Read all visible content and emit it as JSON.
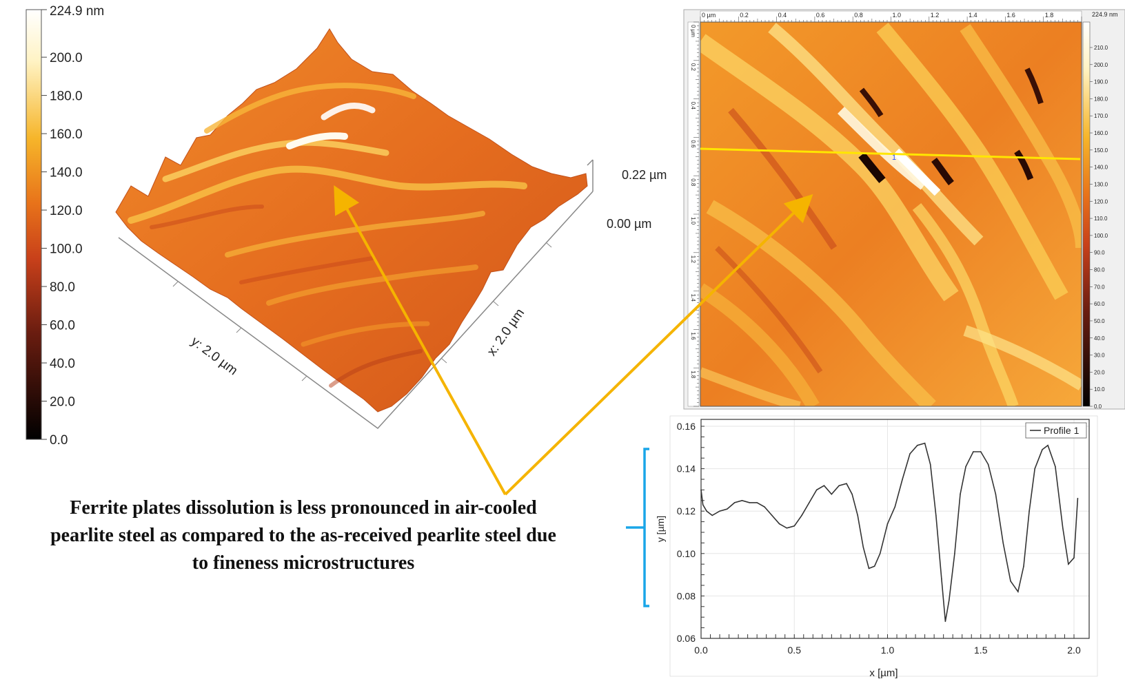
{
  "colorbar_3d": {
    "max_label": "224.9 nm",
    "ticks": [
      "200.0",
      "180.0",
      "160.0",
      "140.0",
      "120.0",
      "100.0",
      "80.0",
      "60.0",
      "40.0",
      "20.0",
      "0.0"
    ]
  },
  "surface_3d": {
    "x_axis_label": "x: 2.0 µm",
    "y_axis_label": "y: 2.0 µm",
    "z_top_label": "0.22 µm",
    "z_bottom_label": "0.00 µm"
  },
  "map_2d": {
    "top_ruler_labels": [
      "0 µm",
      "0.2",
      "0.4",
      "0.6",
      "0.8",
      "1.0",
      "1.2",
      "1.4",
      "1.6",
      "1.8"
    ],
    "left_ruler_labels": [
      "0 µm",
      "0.2",
      "0.4",
      "0.6",
      "0.8",
      "1.0",
      "1.2",
      "1.4",
      "1.6",
      "1.8"
    ],
    "colorbar_max": "224.9 nm",
    "colorbar_ticks": [
      "210.0",
      "200.0",
      "190.0",
      "180.0",
      "170.0",
      "160.0",
      "150.0",
      "140.0",
      "130.0",
      "120.0",
      "110.0",
      "100.0",
      "90.0",
      "80.0",
      "70.0",
      "60.0",
      "50.0",
      "40.0",
      "30.0",
      "20.0",
      "10.0",
      "0.0"
    ],
    "profile_marker": "1"
  },
  "caption": {
    "lines": [
      "Ferrite plates dissolution is less pronounced in air-cooled",
      "pearlite steel as compared to the as-received pearlite steel due",
      "to fineness microstructures"
    ]
  },
  "chart_data": {
    "type": "line",
    "title": "",
    "xlabel": "x [µm]",
    "ylabel": "y [µm]",
    "xlim": [
      0,
      2.0
    ],
    "ylim": [
      0.06,
      0.16
    ],
    "x_ticks": [
      "0.0",
      "0.5",
      "1.0",
      "1.5",
      "2.0"
    ],
    "y_ticks": [
      "0.16",
      "0.14",
      "0.12",
      "0.10",
      "0.08",
      "0.06"
    ],
    "legend": "top-right",
    "series": [
      {
        "name": "Profile 1",
        "x": [
          0.0,
          0.01,
          0.03,
          0.06,
          0.1,
          0.14,
          0.18,
          0.22,
          0.26,
          0.3,
          0.34,
          0.38,
          0.42,
          0.46,
          0.5,
          0.54,
          0.58,
          0.62,
          0.66,
          0.7,
          0.74,
          0.78,
          0.81,
          0.84,
          0.87,
          0.9,
          0.93,
          0.96,
          1.0,
          1.04,
          1.08,
          1.12,
          1.16,
          1.2,
          1.23,
          1.26,
          1.29,
          1.31,
          1.33,
          1.36,
          1.39,
          1.42,
          1.46,
          1.5,
          1.54,
          1.58,
          1.62,
          1.66,
          1.7,
          1.73,
          1.76,
          1.79,
          1.83,
          1.86,
          1.9,
          1.94,
          1.97,
          2.0,
          2.02
        ],
        "y": [
          0.13,
          0.123,
          0.12,
          0.118,
          0.12,
          0.121,
          0.124,
          0.125,
          0.124,
          0.124,
          0.122,
          0.118,
          0.114,
          0.112,
          0.113,
          0.118,
          0.124,
          0.13,
          0.132,
          0.128,
          0.132,
          0.133,
          0.128,
          0.118,
          0.103,
          0.093,
          0.094,
          0.1,
          0.114,
          0.122,
          0.135,
          0.147,
          0.151,
          0.152,
          0.142,
          0.118,
          0.088,
          0.068,
          0.078,
          0.1,
          0.128,
          0.141,
          0.148,
          0.148,
          0.142,
          0.128,
          0.105,
          0.087,
          0.082,
          0.094,
          0.12,
          0.14,
          0.149,
          0.151,
          0.141,
          0.112,
          0.095,
          0.098,
          0.126
        ]
      }
    ]
  }
}
